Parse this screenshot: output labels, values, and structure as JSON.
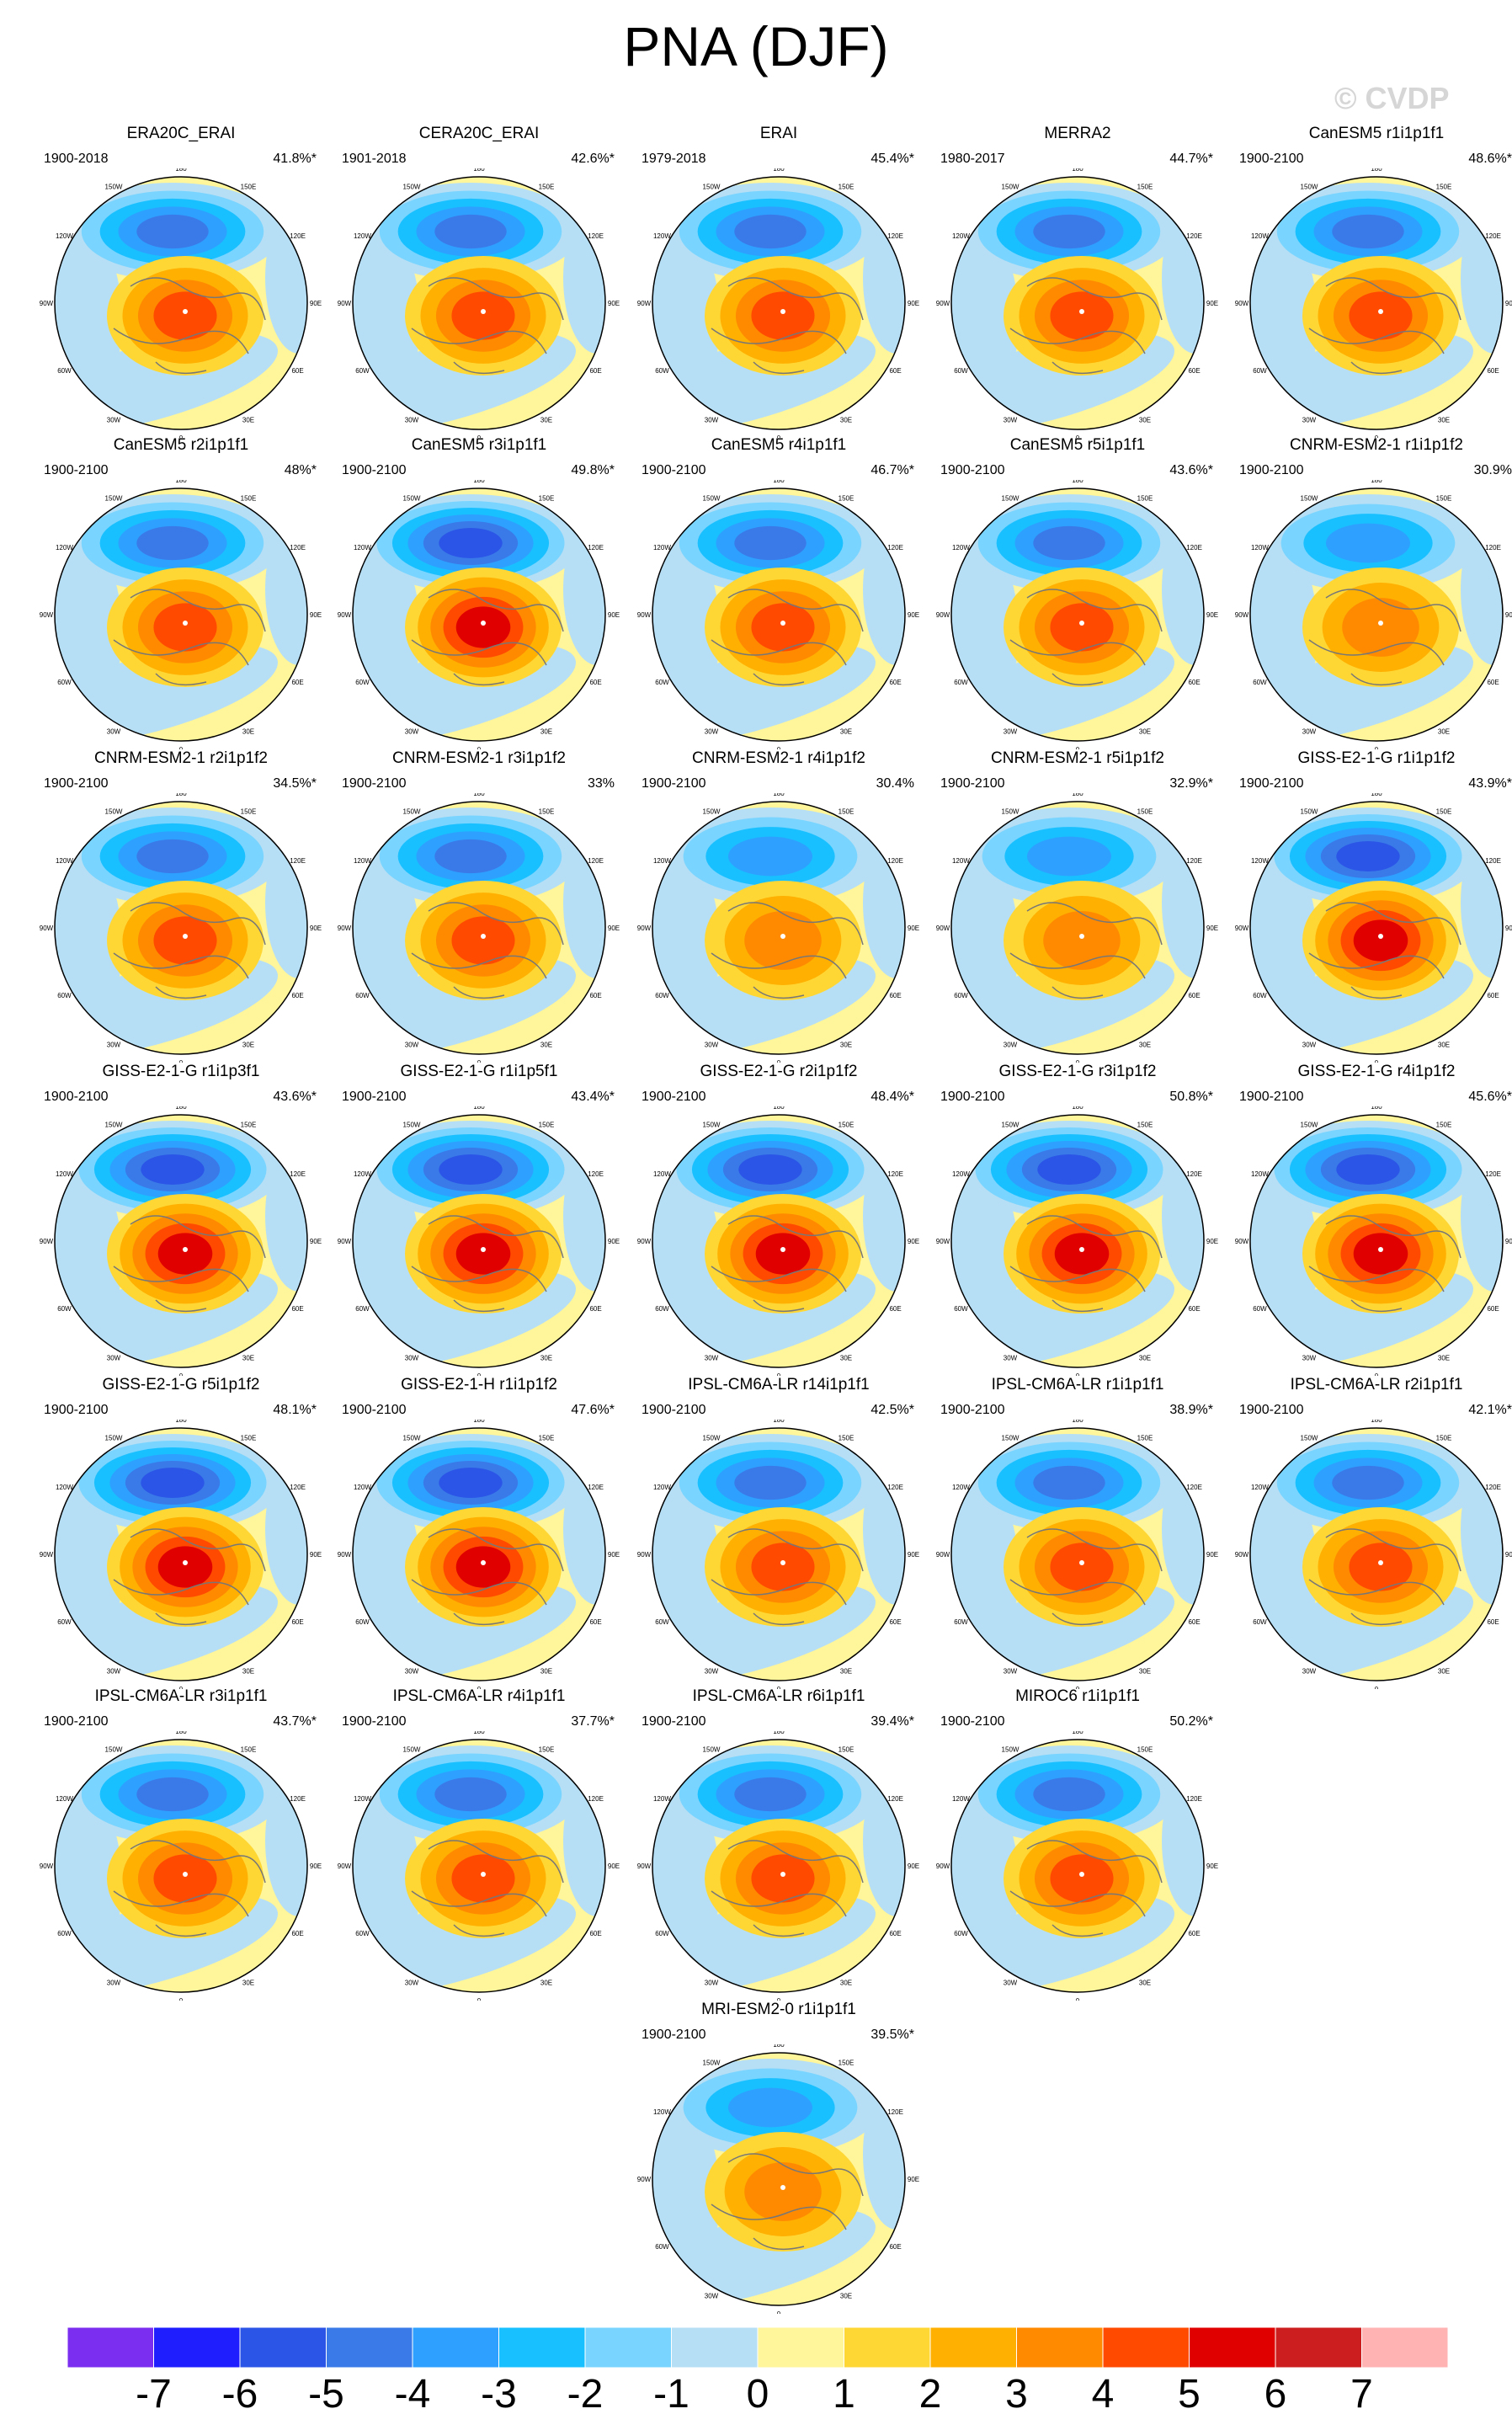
{
  "title": "PNA (DJF)",
  "watermark": "© CVDP",
  "colorbar": {
    "colors": [
      "#7b2ef0",
      "#1e1eff",
      "#2b55e6",
      "#3a7ae8",
      "#2ea0ff",
      "#19c0ff",
      "#79d4ff",
      "#b6dff5",
      "#fff59a",
      "#ffd735",
      "#ffb000",
      "#ff8a00",
      "#ff4a00",
      "#e00000",
      "#cc1e1e",
      "#ffb3b3"
    ],
    "labels": [
      "-7",
      "-6",
      "-5",
      "-4",
      "-3",
      "-2",
      "-1",
      "0",
      "1",
      "2",
      "3",
      "4",
      "5",
      "6",
      "7"
    ]
  },
  "map": {
    "longitude_labels": [
      "180",
      "150W",
      "120W",
      "90W",
      "60W",
      "30W",
      "0",
      "30E",
      "60E",
      "90E",
      "120E",
      "150E"
    ]
  },
  "panels": [
    {
      "title": "ERA20C_ERAI",
      "period": "1900-2018",
      "pct": "41.8%*",
      "strength": 0.72
    },
    {
      "title": "CERA20C_ERAI",
      "period": "1901-2018",
      "pct": "42.6%*",
      "strength": 0.7
    },
    {
      "title": "ERAI",
      "period": "1979-2018",
      "pct": "45.4%*",
      "strength": 0.75
    },
    {
      "title": "MERRA2",
      "period": "1980-2017",
      "pct": "44.7%*",
      "strength": 0.74
    },
    {
      "title": "CanESM5 r1i1p1f1",
      "period": "1900-2100",
      "pct": "48.6%*",
      "strength": 0.85
    },
    {
      "title": "CanESM5 r2i1p1f1",
      "period": "1900-2100",
      "pct": "48%*",
      "strength": 0.85
    },
    {
      "title": "CanESM5 r3i1p1f1",
      "period": "1900-2100",
      "pct": "49.8%*",
      "strength": 0.9
    },
    {
      "title": "CanESM5 r4i1p1f1",
      "period": "1900-2100",
      "pct": "46.7%*",
      "strength": 0.85
    },
    {
      "title": "CanESM5 r5i1p1f1",
      "period": "1900-2100",
      "pct": "43.6%*",
      "strength": 0.82
    },
    {
      "title": "CNRM-ESM2-1 r1i1p1f2",
      "period": "1900-2100",
      "pct": "30.9%",
      "strength": 0.6
    },
    {
      "title": "CNRM-ESM2-1 r2i1p1f2",
      "period": "1900-2100",
      "pct": "34.5%*",
      "strength": 0.7
    },
    {
      "title": "CNRM-ESM2-1 r3i1p1f2",
      "period": "1900-2100",
      "pct": "33%",
      "strength": 0.68
    },
    {
      "title": "CNRM-ESM2-1 r4i1p1f2",
      "period": "1900-2100",
      "pct": "30.4%",
      "strength": 0.6
    },
    {
      "title": "CNRM-ESM2-1 r5i1p1f2",
      "period": "1900-2100",
      "pct": "32.9%*",
      "strength": 0.62
    },
    {
      "title": "GISS-E2-1-G r1i1p1f2",
      "period": "1900-2100",
      "pct": "43.9%*",
      "strength": 0.95
    },
    {
      "title": "GISS-E2-1-G r1i1p3f1",
      "period": "1900-2100",
      "pct": "43.6%*",
      "strength": 0.92
    },
    {
      "title": "GISS-E2-1-G r1i1p5f1",
      "period": "1900-2100",
      "pct": "43.4%*",
      "strength": 0.95
    },
    {
      "title": "GISS-E2-1-G r2i1p1f2",
      "period": "1900-2100",
      "pct": "48.4%*",
      "strength": 0.97
    },
    {
      "title": "GISS-E2-1-G r3i1p1f2",
      "period": "1900-2100",
      "pct": "50.8%*",
      "strength": 1.0
    },
    {
      "title": "GISS-E2-1-G r4i1p1f2",
      "period": "1900-2100",
      "pct": "45.6%*",
      "strength": 0.95
    },
    {
      "title": "GISS-E2-1-G r5i1p1f2",
      "period": "1900-2100",
      "pct": "48.1%*",
      "strength": 0.98
    },
    {
      "title": "GISS-E2-1-H r1i1p1f2",
      "period": "1900-2100",
      "pct": "47.6%*",
      "strength": 0.96
    },
    {
      "title": "IPSL-CM6A-LR r14i1p1f1",
      "period": "1900-2100",
      "pct": "42.5%*",
      "strength": 0.75
    },
    {
      "title": "IPSL-CM6A-LR r1i1p1f1",
      "period": "1900-2100",
      "pct": "38.9%*",
      "strength": 0.72
    },
    {
      "title": "IPSL-CM6A-LR r2i1p1f1",
      "period": "1900-2100",
      "pct": "42.1%*",
      "strength": 0.8
    },
    {
      "title": "IPSL-CM6A-LR r3i1p1f1",
      "period": "1900-2100",
      "pct": "43.7%*",
      "strength": 0.78
    },
    {
      "title": "IPSL-CM6A-LR r4i1p1f1",
      "period": "1900-2100",
      "pct": "37.7%*",
      "strength": 0.7
    },
    {
      "title": "IPSL-CM6A-LR r6i1p1f1",
      "period": "1900-2100",
      "pct": "39.4%*",
      "strength": 0.74
    },
    {
      "title": "MIROC6 r1i1p1f1",
      "period": "1900-2100",
      "pct": "50.2%*",
      "strength": 0.7
    },
    {
      "title": "MRI-ESM2-0 r1i1p1f1",
      "period": "1900-2100",
      "pct": "39.5%*",
      "strength": 0.62
    }
  ]
}
